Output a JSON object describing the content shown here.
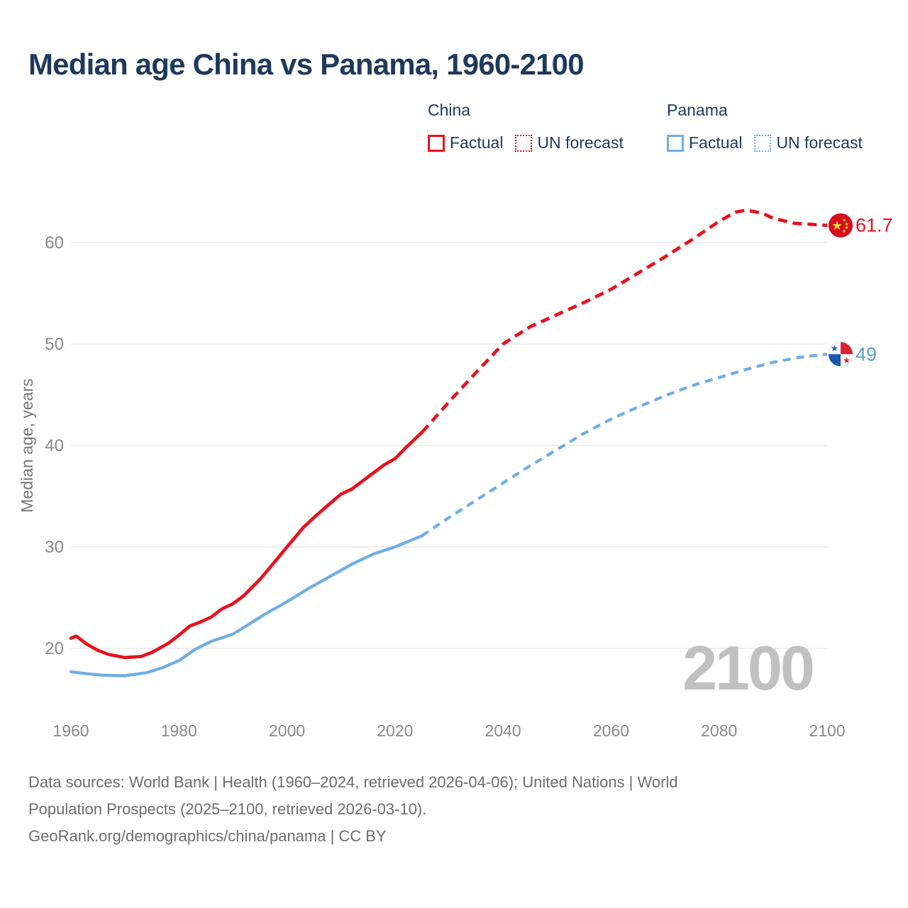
{
  "title": "Median age China vs Panama, 1960-2100",
  "legend": {
    "groups": [
      {
        "name": "China",
        "color": "#e8111c",
        "items": [
          {
            "label": "Factual",
            "style": "solid"
          },
          {
            "label": "UN forecast",
            "style": "dotted"
          }
        ]
      },
      {
        "name": "Panama",
        "color": "#6fade4",
        "items": [
          {
            "label": "Factual",
            "style": "solid"
          },
          {
            "label": "UN forecast",
            "style": "dotted"
          }
        ]
      }
    ]
  },
  "chart_data": {
    "type": "line",
    "title": "Median age China vs Panama, 1960-2100",
    "xlabel": "",
    "ylabel": "Median age, years",
    "xlim": [
      1960,
      2100
    ],
    "ylim": [
      20,
      60
    ],
    "xticks": [
      1960,
      1980,
      2000,
      2020,
      2040,
      2060,
      2080,
      2100
    ],
    "yticks": [
      20,
      30,
      40,
      50,
      60
    ],
    "grid": "horizontal-only",
    "legend_position": "top-right",
    "watermark": "2100",
    "series": [
      {
        "name": "China Factual",
        "country": "China",
        "kind": "factual",
        "color": "#e8111c",
        "dashed": false,
        "x": [
          1960,
          1961,
          1963,
          1965,
          1967,
          1970,
          1973,
          1975,
          1978,
          1980,
          1982,
          1984,
          1986,
          1988,
          1990,
          1992,
          1995,
          1998,
          2000,
          2003,
          2005,
          2008,
          2010,
          2012,
          2015,
          2018,
          2020,
          2022,
          2025
        ],
        "values": [
          21.0,
          21.2,
          20.4,
          19.8,
          19.4,
          19.1,
          19.2,
          19.6,
          20.5,
          21.3,
          22.2,
          22.6,
          23.1,
          23.9,
          24.4,
          25.2,
          26.8,
          28.7,
          30.0,
          31.9,
          32.9,
          34.3,
          35.2,
          35.7,
          36.9,
          38.1,
          38.7,
          39.8,
          41.3
        ]
      },
      {
        "name": "China UN forecast",
        "country": "China",
        "kind": "forecast",
        "color": "#e8111c",
        "dashed": true,
        "x": [
          2025,
          2030,
          2035,
          2040,
          2045,
          2050,
          2055,
          2060,
          2065,
          2070,
          2075,
          2080,
          2083,
          2085,
          2088,
          2090,
          2094,
          2100
        ],
        "values": [
          41.3,
          44.3,
          47.2,
          50.0,
          51.7,
          52.9,
          54.1,
          55.4,
          57.0,
          58.6,
          60.3,
          62.1,
          63.0,
          63.2,
          62.9,
          62.4,
          61.9,
          61.7
        ]
      },
      {
        "name": "Panama Factual",
        "country": "Panama",
        "kind": "factual",
        "color": "#6fade4",
        "dashed": false,
        "x": [
          1960,
          1963,
          1966,
          1970,
          1974,
          1977,
          1980,
          1983,
          1986,
          1990,
          1993,
          1996,
          2000,
          2004,
          2008,
          2012,
          2016,
          2020,
          2025
        ],
        "values": [
          17.7,
          17.5,
          17.35,
          17.3,
          17.6,
          18.1,
          18.8,
          19.9,
          20.7,
          21.4,
          22.4,
          23.4,
          24.6,
          25.9,
          27.1,
          28.3,
          29.3,
          30.0,
          31.1
        ]
      },
      {
        "name": "Panama UN forecast",
        "country": "Panama",
        "kind": "forecast",
        "color": "#6fade4",
        "dashed": true,
        "x": [
          2025,
          2030,
          2035,
          2040,
          2045,
          2050,
          2055,
          2060,
          2065,
          2070,
          2075,
          2080,
          2085,
          2090,
          2095,
          2100
        ],
        "values": [
          31.1,
          32.9,
          34.6,
          36.3,
          38.0,
          39.6,
          41.2,
          42.6,
          43.8,
          44.9,
          45.9,
          46.7,
          47.5,
          48.2,
          48.7,
          49.0
        ]
      }
    ],
    "end_labels": [
      {
        "country": "China",
        "value": "61.7",
        "x": 2100,
        "y": 61.7,
        "color": "#e8111c",
        "flag": "china-flag"
      },
      {
        "country": "Panama",
        "value": "49",
        "x": 2100,
        "y": 49.0,
        "color": "#5b9fd8",
        "flag": "panama-flag"
      }
    ]
  },
  "footer": {
    "line1": "Data sources: World Bank | Health (1960–2024, retrieved 2026-04-06); United Nations | World",
    "line2": "Population Prospects (2025–2100, retrieved 2026-03-10).",
    "line3": "GeoRank.org/demographics/china/panama | CC BY"
  }
}
